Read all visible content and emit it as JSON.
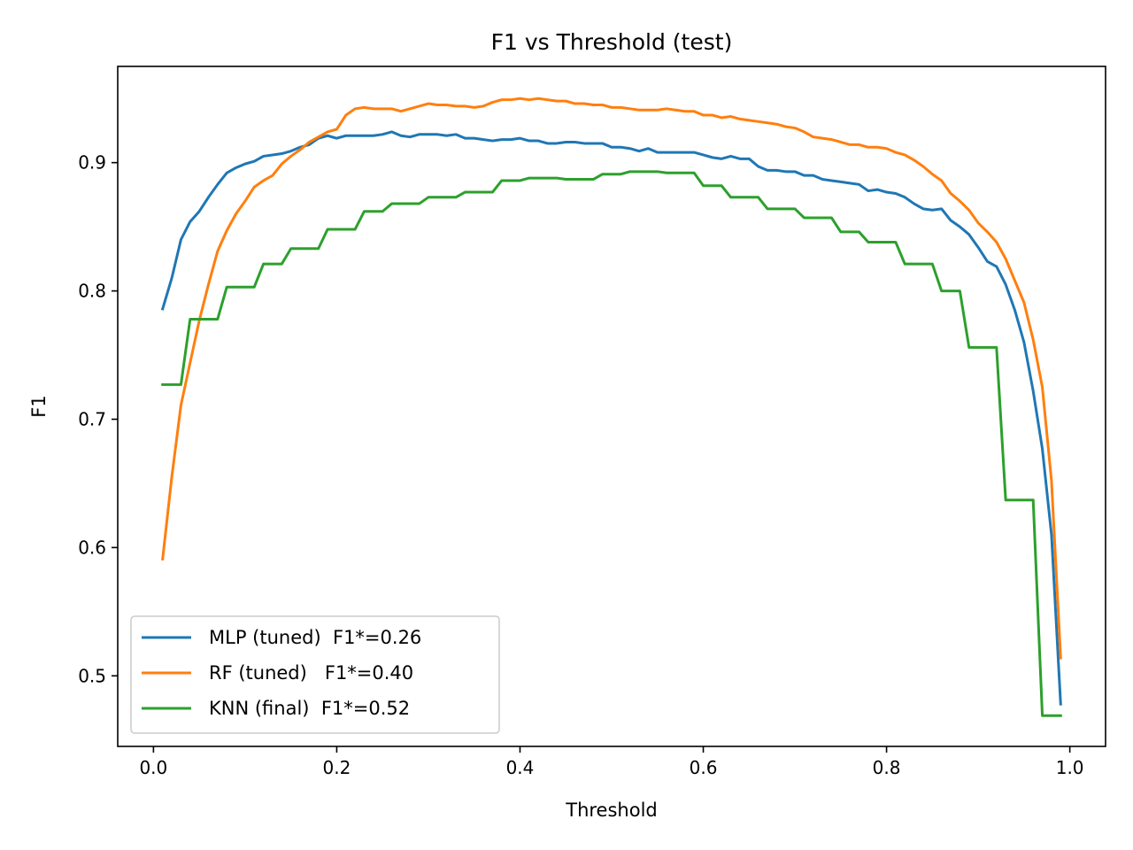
{
  "chart_data": {
    "type": "line",
    "title": "F1 vs Threshold (test)",
    "xlabel": "Threshold",
    "ylabel": "F1",
    "xlim": [
      -0.039,
      1.039
    ],
    "ylim": [
      0.445,
      0.975
    ],
    "xticks": [
      0.0,
      0.2,
      0.4,
      0.6,
      0.8,
      1.0
    ],
    "xtick_labels": [
      "0.0",
      "0.2",
      "0.4",
      "0.6",
      "0.8",
      "1.0"
    ],
    "yticks": [
      0.5,
      0.6,
      0.7,
      0.8,
      0.9
    ],
    "ytick_labels": [
      "0.5",
      "0.6",
      "0.7",
      "0.8",
      "0.9"
    ],
    "grid": false,
    "legend_position": "lower-left",
    "series": [
      {
        "name": "MLP (tuned)  F1*=0.26",
        "color": "#1f77b4",
        "points": [
          [
            0.01,
            0.786
          ],
          [
            0.02,
            0.81
          ],
          [
            0.03,
            0.84
          ],
          [
            0.04,
            0.854
          ],
          [
            0.05,
            0.862
          ],
          [
            0.06,
            0.873
          ],
          [
            0.07,
            0.883
          ],
          [
            0.08,
            0.892
          ],
          [
            0.09,
            0.896
          ],
          [
            0.1,
            0.899
          ],
          [
            0.11,
            0.901
          ],
          [
            0.12,
            0.905
          ],
          [
            0.13,
            0.906
          ],
          [
            0.14,
            0.907
          ],
          [
            0.15,
            0.909
          ],
          [
            0.16,
            0.912
          ],
          [
            0.17,
            0.914
          ],
          [
            0.18,
            0.919
          ],
          [
            0.19,
            0.921
          ],
          [
            0.2,
            0.919
          ],
          [
            0.21,
            0.921
          ],
          [
            0.22,
            0.921
          ],
          [
            0.23,
            0.921
          ],
          [
            0.24,
            0.921
          ],
          [
            0.25,
            0.922
          ],
          [
            0.26,
            0.924
          ],
          [
            0.27,
            0.921
          ],
          [
            0.28,
            0.92
          ],
          [
            0.29,
            0.922
          ],
          [
            0.3,
            0.922
          ],
          [
            0.31,
            0.922
          ],
          [
            0.32,
            0.921
          ],
          [
            0.33,
            0.922
          ],
          [
            0.34,
            0.919
          ],
          [
            0.35,
            0.919
          ],
          [
            0.36,
            0.918
          ],
          [
            0.37,
            0.917
          ],
          [
            0.38,
            0.918
          ],
          [
            0.39,
            0.918
          ],
          [
            0.4,
            0.919
          ],
          [
            0.41,
            0.917
          ],
          [
            0.42,
            0.917
          ],
          [
            0.43,
            0.915
          ],
          [
            0.44,
            0.915
          ],
          [
            0.45,
            0.916
          ],
          [
            0.46,
            0.916
          ],
          [
            0.47,
            0.915
          ],
          [
            0.48,
            0.915
          ],
          [
            0.49,
            0.915
          ],
          [
            0.5,
            0.912
          ],
          [
            0.51,
            0.912
          ],
          [
            0.52,
            0.911
          ],
          [
            0.53,
            0.909
          ],
          [
            0.54,
            0.911
          ],
          [
            0.55,
            0.908
          ],
          [
            0.56,
            0.908
          ],
          [
            0.57,
            0.908
          ],
          [
            0.58,
            0.908
          ],
          [
            0.59,
            0.908
          ],
          [
            0.6,
            0.906
          ],
          [
            0.61,
            0.904
          ],
          [
            0.62,
            0.903
          ],
          [
            0.63,
            0.905
          ],
          [
            0.64,
            0.903
          ],
          [
            0.65,
            0.903
          ],
          [
            0.66,
            0.897
          ],
          [
            0.67,
            0.894
          ],
          [
            0.68,
            0.894
          ],
          [
            0.69,
            0.893
          ],
          [
            0.7,
            0.893
          ],
          [
            0.71,
            0.89
          ],
          [
            0.72,
            0.89
          ],
          [
            0.73,
            0.887
          ],
          [
            0.74,
            0.886
          ],
          [
            0.75,
            0.885
          ],
          [
            0.76,
            0.884
          ],
          [
            0.77,
            0.883
          ],
          [
            0.78,
            0.878
          ],
          [
            0.79,
            0.879
          ],
          [
            0.8,
            0.877
          ],
          [
            0.81,
            0.876
          ],
          [
            0.82,
            0.873
          ],
          [
            0.83,
            0.868
          ],
          [
            0.84,
            0.864
          ],
          [
            0.85,
            0.863
          ],
          [
            0.86,
            0.864
          ],
          [
            0.87,
            0.855
          ],
          [
            0.88,
            0.85
          ],
          [
            0.89,
            0.844
          ],
          [
            0.9,
            0.834
          ],
          [
            0.91,
            0.823
          ],
          [
            0.92,
            0.819
          ],
          [
            0.93,
            0.805
          ],
          [
            0.94,
            0.785
          ],
          [
            0.95,
            0.76
          ],
          [
            0.96,
            0.722
          ],
          [
            0.97,
            0.677
          ],
          [
            0.98,
            0.61
          ],
          [
            0.99,
            0.478
          ]
        ]
      },
      {
        "name": "RF (tuned)   F1*=0.40",
        "color": "#ff7f0e",
        "points": [
          [
            0.01,
            0.591
          ],
          [
            0.02,
            0.655
          ],
          [
            0.03,
            0.711
          ],
          [
            0.04,
            0.744
          ],
          [
            0.05,
            0.777
          ],
          [
            0.06,
            0.805
          ],
          [
            0.07,
            0.831
          ],
          [
            0.08,
            0.847
          ],
          [
            0.09,
            0.86
          ],
          [
            0.1,
            0.87
          ],
          [
            0.11,
            0.881
          ],
          [
            0.12,
            0.886
          ],
          [
            0.13,
            0.89
          ],
          [
            0.14,
            0.899
          ],
          [
            0.15,
            0.905
          ],
          [
            0.16,
            0.91
          ],
          [
            0.17,
            0.916
          ],
          [
            0.18,
            0.92
          ],
          [
            0.19,
            0.924
          ],
          [
            0.2,
            0.926
          ],
          [
            0.21,
            0.937
          ],
          [
            0.22,
            0.942
          ],
          [
            0.23,
            0.943
          ],
          [
            0.24,
            0.942
          ],
          [
            0.25,
            0.942
          ],
          [
            0.26,
            0.942
          ],
          [
            0.27,
            0.94
          ],
          [
            0.28,
            0.942
          ],
          [
            0.29,
            0.944
          ],
          [
            0.3,
            0.946
          ],
          [
            0.31,
            0.945
          ],
          [
            0.32,
            0.945
          ],
          [
            0.33,
            0.944
          ],
          [
            0.34,
            0.944
          ],
          [
            0.35,
            0.943
          ],
          [
            0.36,
            0.944
          ],
          [
            0.37,
            0.947
          ],
          [
            0.38,
            0.949
          ],
          [
            0.39,
            0.949
          ],
          [
            0.4,
            0.95
          ],
          [
            0.41,
            0.949
          ],
          [
            0.42,
            0.95
          ],
          [
            0.43,
            0.949
          ],
          [
            0.44,
            0.948
          ],
          [
            0.45,
            0.948
          ],
          [
            0.46,
            0.946
          ],
          [
            0.47,
            0.946
          ],
          [
            0.48,
            0.945
          ],
          [
            0.49,
            0.945
          ],
          [
            0.5,
            0.943
          ],
          [
            0.51,
            0.943
          ],
          [
            0.52,
            0.942
          ],
          [
            0.53,
            0.941
          ],
          [
            0.54,
            0.941
          ],
          [
            0.55,
            0.941
          ],
          [
            0.56,
            0.942
          ],
          [
            0.57,
            0.941
          ],
          [
            0.58,
            0.94
          ],
          [
            0.59,
            0.94
          ],
          [
            0.6,
            0.937
          ],
          [
            0.61,
            0.937
          ],
          [
            0.62,
            0.935
          ],
          [
            0.63,
            0.936
          ],
          [
            0.64,
            0.934
          ],
          [
            0.65,
            0.933
          ],
          [
            0.66,
            0.932
          ],
          [
            0.67,
            0.931
          ],
          [
            0.68,
            0.93
          ],
          [
            0.69,
            0.928
          ],
          [
            0.7,
            0.927
          ],
          [
            0.71,
            0.924
          ],
          [
            0.72,
            0.92
          ],
          [
            0.73,
            0.919
          ],
          [
            0.74,
            0.918
          ],
          [
            0.75,
            0.916
          ],
          [
            0.76,
            0.914
          ],
          [
            0.77,
            0.914
          ],
          [
            0.78,
            0.912
          ],
          [
            0.79,
            0.912
          ],
          [
            0.8,
            0.911
          ],
          [
            0.81,
            0.908
          ],
          [
            0.82,
            0.906
          ],
          [
            0.83,
            0.902
          ],
          [
            0.84,
            0.897
          ],
          [
            0.85,
            0.891
          ],
          [
            0.86,
            0.886
          ],
          [
            0.87,
            0.876
          ],
          [
            0.88,
            0.87
          ],
          [
            0.89,
            0.863
          ],
          [
            0.9,
            0.853
          ],
          [
            0.91,
            0.846
          ],
          [
            0.92,
            0.838
          ],
          [
            0.93,
            0.825
          ],
          [
            0.94,
            0.808
          ],
          [
            0.95,
            0.791
          ],
          [
            0.96,
            0.762
          ],
          [
            0.97,
            0.725
          ],
          [
            0.98,
            0.652
          ],
          [
            0.99,
            0.514
          ]
        ]
      },
      {
        "name": "KNN (final)  F1*=0.52",
        "color": "#2ca02c",
        "points": [
          [
            0.01,
            0.727
          ],
          [
            0.02,
            0.727
          ],
          [
            0.03,
            0.727
          ],
          [
            0.04,
            0.778
          ],
          [
            0.05,
            0.778
          ],
          [
            0.06,
            0.778
          ],
          [
            0.07,
            0.778
          ],
          [
            0.08,
            0.803
          ],
          [
            0.09,
            0.803
          ],
          [
            0.1,
            0.803
          ],
          [
            0.11,
            0.803
          ],
          [
            0.12,
            0.821
          ],
          [
            0.13,
            0.821
          ],
          [
            0.14,
            0.821
          ],
          [
            0.15,
            0.833
          ],
          [
            0.16,
            0.833
          ],
          [
            0.17,
            0.833
          ],
          [
            0.18,
            0.833
          ],
          [
            0.19,
            0.848
          ],
          [
            0.2,
            0.848
          ],
          [
            0.21,
            0.848
          ],
          [
            0.22,
            0.848
          ],
          [
            0.23,
            0.862
          ],
          [
            0.24,
            0.862
          ],
          [
            0.25,
            0.862
          ],
          [
            0.26,
            0.868
          ],
          [
            0.27,
            0.868
          ],
          [
            0.28,
            0.868
          ],
          [
            0.29,
            0.868
          ],
          [
            0.3,
            0.873
          ],
          [
            0.31,
            0.873
          ],
          [
            0.32,
            0.873
          ],
          [
            0.33,
            0.873
          ],
          [
            0.34,
            0.877
          ],
          [
            0.35,
            0.877
          ],
          [
            0.36,
            0.877
          ],
          [
            0.37,
            0.877
          ],
          [
            0.38,
            0.886
          ],
          [
            0.39,
            0.886
          ],
          [
            0.4,
            0.886
          ],
          [
            0.41,
            0.888
          ],
          [
            0.42,
            0.888
          ],
          [
            0.43,
            0.888
          ],
          [
            0.44,
            0.888
          ],
          [
            0.45,
            0.887
          ],
          [
            0.46,
            0.887
          ],
          [
            0.47,
            0.887
          ],
          [
            0.48,
            0.887
          ],
          [
            0.49,
            0.891
          ],
          [
            0.5,
            0.891
          ],
          [
            0.51,
            0.891
          ],
          [
            0.52,
            0.893
          ],
          [
            0.53,
            0.893
          ],
          [
            0.54,
            0.893
          ],
          [
            0.55,
            0.893
          ],
          [
            0.56,
            0.892
          ],
          [
            0.57,
            0.892
          ],
          [
            0.58,
            0.892
          ],
          [
            0.59,
            0.892
          ],
          [
            0.6,
            0.882
          ],
          [
            0.61,
            0.882
          ],
          [
            0.62,
            0.882
          ],
          [
            0.63,
            0.873
          ],
          [
            0.64,
            0.873
          ],
          [
            0.65,
            0.873
          ],
          [
            0.66,
            0.873
          ],
          [
            0.67,
            0.864
          ],
          [
            0.68,
            0.864
          ],
          [
            0.69,
            0.864
          ],
          [
            0.7,
            0.864
          ],
          [
            0.71,
            0.857
          ],
          [
            0.72,
            0.857
          ],
          [
            0.73,
            0.857
          ],
          [
            0.74,
            0.857
          ],
          [
            0.75,
            0.846
          ],
          [
            0.76,
            0.846
          ],
          [
            0.77,
            0.846
          ],
          [
            0.78,
            0.838
          ],
          [
            0.79,
            0.838
          ],
          [
            0.8,
            0.838
          ],
          [
            0.81,
            0.838
          ],
          [
            0.82,
            0.821
          ],
          [
            0.83,
            0.821
          ],
          [
            0.84,
            0.821
          ],
          [
            0.85,
            0.821
          ],
          [
            0.86,
            0.8
          ],
          [
            0.87,
            0.8
          ],
          [
            0.88,
            0.8
          ],
          [
            0.89,
            0.756
          ],
          [
            0.9,
            0.756
          ],
          [
            0.91,
            0.756
          ],
          [
            0.92,
            0.756
          ],
          [
            0.93,
            0.637
          ],
          [
            0.94,
            0.637
          ],
          [
            0.95,
            0.637
          ],
          [
            0.96,
            0.637
          ],
          [
            0.97,
            0.469
          ],
          [
            0.98,
            0.469
          ],
          [
            0.99,
            0.469
          ]
        ]
      }
    ]
  }
}
